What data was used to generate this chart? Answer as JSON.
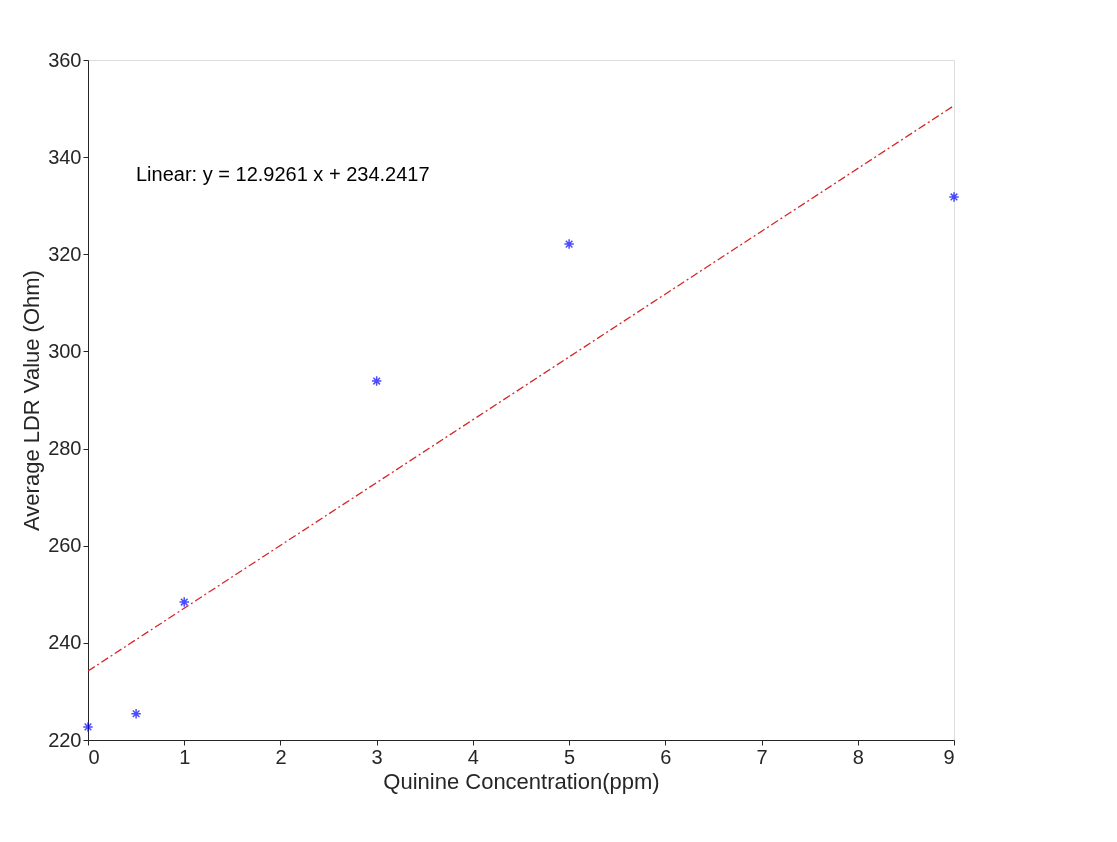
{
  "chart_data": {
    "type": "scatter",
    "xlabel": "Quinine Concentration(ppm)",
    "ylabel": "Average LDR Value (Ohm)",
    "annotations": [
      "Linear: y = 12.9261 x + 234.2417"
    ],
    "x": [
      0,
      0.5,
      1,
      3,
      5,
      9
    ],
    "series": [
      {
        "color": "#0000ff",
        "marker": "cross",
        "values": [
          222.7,
          225.4,
          248.4,
          293.9,
          322.1,
          331.8
        ]
      },
      {
        "type": "line",
        "color": "#d62728",
        "line_style": "dashed",
        "marker": "none",
        "x": [
          0,
          9
        ],
        "values": [
          234.2,
          350.6
        ]
      }
    ],
    "xlim": [
      0,
      9
    ],
    "xticks": [
      0,
      1,
      2,
      3,
      4,
      5,
      6,
      7,
      8,
      9
    ],
    "ylim": [
      220,
      360
    ],
    "yticks": [
      220,
      240,
      260,
      280,
      300,
      320,
      340,
      360
    ],
    "grid": false
  }
}
